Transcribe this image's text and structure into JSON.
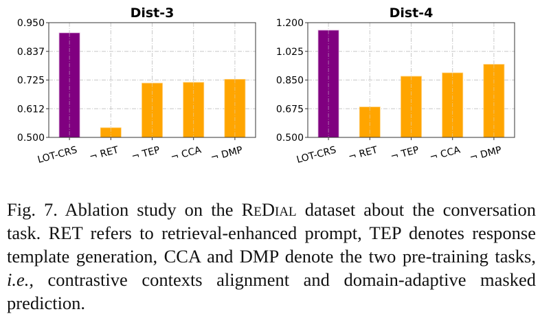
{
  "chart_data": [
    {
      "type": "bar",
      "title": "Dist-3",
      "categories": [
        "LOT-CRS",
        "¬ RET",
        "¬ TEP",
        "¬ CCA",
        "¬ DMP"
      ],
      "values": [
        0.91,
        0.538,
        0.713,
        0.716,
        0.728
      ],
      "colors": [
        "#800080",
        "#FFA500",
        "#FFA500",
        "#FFA500",
        "#FFA500"
      ],
      "ylim": [
        0.5,
        0.95
      ],
      "yticks": [
        "0.500",
        "0.612",
        "0.725",
        "0.837",
        "0.950"
      ],
      "ytick_values": [
        0.5,
        0.6125,
        0.725,
        0.8375,
        0.95
      ],
      "xlabel": "",
      "ylabel": "",
      "grid": true
    },
    {
      "type": "bar",
      "title": "Dist-4",
      "categories": [
        "LOT-CRS",
        "¬ RET",
        "¬ TEP",
        "¬ CCA",
        "¬ DMP"
      ],
      "values": [
        1.154,
        0.686,
        0.873,
        0.894,
        0.946
      ],
      "colors": [
        "#800080",
        "#FFA500",
        "#FFA500",
        "#FFA500",
        "#FFA500"
      ],
      "ylim": [
        0.5,
        1.2
      ],
      "yticks": [
        "0.500",
        "0.675",
        "0.850",
        "1.025",
        "1.200"
      ],
      "ytick_values": [
        0.5,
        0.675,
        0.85,
        1.025,
        1.2
      ],
      "xlabel": "",
      "ylabel": "",
      "grid": true
    }
  ],
  "caption": {
    "label": "Fig. 7.",
    "text_before": " Ablation study on the ",
    "dataset": "ReDial",
    "text_mid": " dataset about the conversation task. RET refers to retrieval-enhanced prompt, TEP denotes response template generation, CCA and DMP denote the two pre-training tasks, ",
    "ie": "i.e.,",
    "text_after": " contrastive contexts alignment and domain-adaptive masked prediction."
  }
}
